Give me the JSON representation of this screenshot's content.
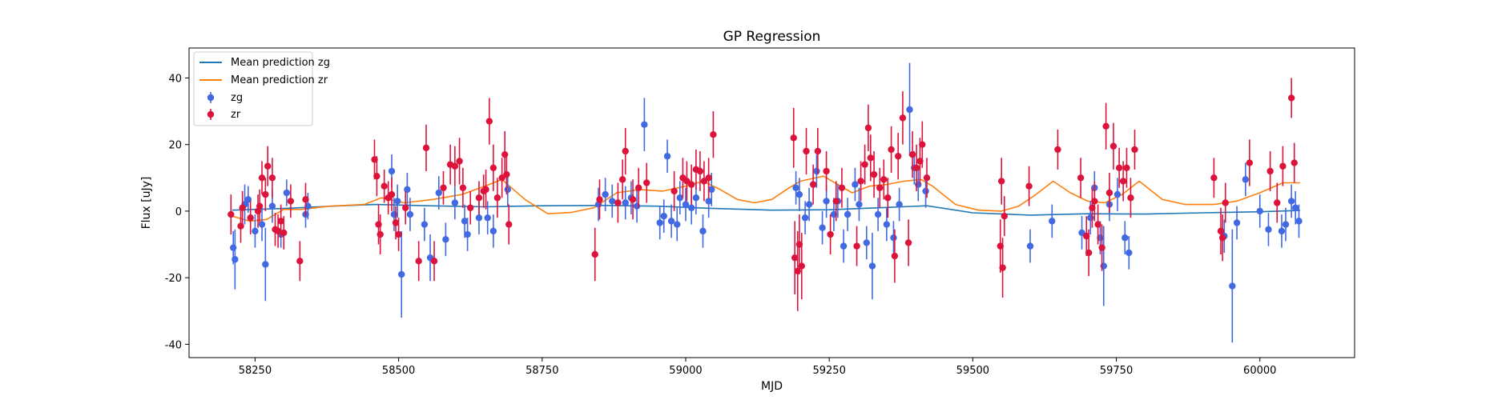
{
  "chart_data": {
    "type": "scatter",
    "title": "GP Regression",
    "xlabel": "MJD",
    "ylabel": "Flux [uJy]",
    "xlim": [
      58135,
      60165
    ],
    "ylim": [
      -44,
      49
    ],
    "xticks": [
      58250,
      58500,
      58750,
      59000,
      59250,
      59500,
      59750,
      60000
    ],
    "yticks": [
      -40,
      -20,
      0,
      20,
      40
    ],
    "legend_position": "upper-left",
    "colors": {
      "mean_zg": "#1f77b4",
      "mean_zr": "#ff7f0e",
      "zg": "#4169e1",
      "zr": "#dc143c"
    },
    "lines": [
      {
        "name": "Mean prediction zg",
        "x": [
          58210,
          58300,
          58400,
          58460,
          58550,
          58650,
          58750,
          58850,
          58950,
          59050,
          59150,
          59250,
          59350,
          59420,
          59500,
          59600,
          59700,
          59800,
          59900,
          60000,
          60070
        ],
        "y": [
          0.3,
          0.8,
          1.6,
          2.0,
          1.6,
          1.3,
          1.6,
          1.7,
          1.5,
          0.8,
          0.3,
          0.4,
          1.1,
          1.6,
          -0.5,
          -1.2,
          -0.8,
          -0.9,
          -0.5,
          -0.2,
          0.2
        ]
      },
      {
        "name": "Mean prediction zr",
        "x": [
          58210,
          58240,
          58270,
          58300,
          58330,
          58380,
          58440,
          58470,
          58510,
          58560,
          58610,
          58650,
          58680,
          58720,
          58760,
          58800,
          58840,
          58880,
          58920,
          58960,
          59000,
          59030,
          59060,
          59090,
          59120,
          59150,
          59180,
          59200,
          59240,
          59270,
          59290,
          59320,
          59350,
          59380,
          59410,
          59430,
          59470,
          59510,
          59550,
          59580,
          59610,
          59640,
          59670,
          59700,
          59730,
          59760,
          59790,
          59830,
          59870,
          59920,
          59960,
          60000,
          60040,
          60070
        ],
        "y": [
          -1.5,
          -3.0,
          -2.5,
          0.5,
          0.5,
          1.5,
          2.0,
          4.0,
          2.5,
          3.5,
          5.0,
          7.5,
          9.5,
          3.5,
          -0.8,
          -0.4,
          1.0,
          5.5,
          6.5,
          6.0,
          7.5,
          9.0,
          6.5,
          3.5,
          2.5,
          3.5,
          7.0,
          9.0,
          10.5,
          7.5,
          5.5,
          7.5,
          8.0,
          9.0,
          9.5,
          7.5,
          2.0,
          0.3,
          0.0,
          1.5,
          5.0,
          9.0,
          5.5,
          3.0,
          2.5,
          5.0,
          9.0,
          3.5,
          2.0,
          2.0,
          3.0,
          5.5,
          8.5,
          8.5
        ]
      }
    ],
    "scatter_series": [
      {
        "name": "zg",
        "points": [
          [
            58212,
            -11,
            5
          ],
          [
            58215,
            -14.5,
            9
          ],
          [
            58232,
            2,
            6
          ],
          [
            58238,
            3.5,
            4
          ],
          [
            58250,
            -6,
            5
          ],
          [
            58262,
            -4,
            5
          ],
          [
            58268,
            -16,
            11
          ],
          [
            58280,
            1.5,
            5
          ],
          [
            58295,
            -7,
            4
          ],
          [
            58305,
            5.5,
            4
          ],
          [
            58338,
            -1,
            4
          ],
          [
            58342,
            1.5,
            4
          ],
          [
            58488,
            12,
            5
          ],
          [
            58492,
            -1,
            5
          ],
          [
            58498,
            3,
            5
          ],
          [
            58505,
            -19,
            13
          ],
          [
            58515,
            6.5,
            5
          ],
          [
            58520,
            -1,
            5
          ],
          [
            58545,
            -4,
            5
          ],
          [
            58555,
            -14,
            7
          ],
          [
            58570,
            5.5,
            5
          ],
          [
            58582,
            -8.5,
            5
          ],
          [
            58598,
            2.5,
            5
          ],
          [
            58615,
            -3,
            5
          ],
          [
            58620,
            -7,
            5
          ],
          [
            58640,
            -2,
            5
          ],
          [
            58655,
            -2,
            5
          ],
          [
            58665,
            -6,
            5
          ],
          [
            58690,
            6.5,
            5
          ],
          [
            58848,
            2,
            5
          ],
          [
            58860,
            5,
            5
          ],
          [
            58872,
            3,
            5
          ],
          [
            58895,
            2.5,
            5
          ],
          [
            58905,
            4,
            5
          ],
          [
            58915,
            1.5,
            5
          ],
          [
            58928,
            26,
            8
          ],
          [
            58955,
            -3.5,
            5
          ],
          [
            58962,
            -1.5,
            5
          ],
          [
            58968,
            16.5,
            5
          ],
          [
            58975,
            -3,
            5
          ],
          [
            58985,
            -4,
            5
          ],
          [
            58990,
            4,
            5
          ],
          [
            59000,
            2,
            5
          ],
          [
            59010,
            1,
            5
          ],
          [
            59018,
            4,
            5
          ],
          [
            59030,
            -6,
            5
          ],
          [
            59040,
            3,
            5
          ],
          [
            59045,
            6.5,
            5
          ],
          [
            59192,
            7,
            5
          ],
          [
            59198,
            5,
            5
          ],
          [
            59208,
            -2,
            5
          ],
          [
            59215,
            2,
            5
          ],
          [
            59228,
            12,
            5
          ],
          [
            59238,
            -5,
            5
          ],
          [
            59245,
            3,
            5
          ],
          [
            59258,
            -1,
            5
          ],
          [
            59265,
            3,
            5
          ],
          [
            59275,
            -10.5,
            5
          ],
          [
            59282,
            -1,
            5
          ],
          [
            59295,
            8,
            5
          ],
          [
            59302,
            2,
            5
          ],
          [
            59315,
            -9.5,
            5
          ],
          [
            59325,
            -16.5,
            10
          ],
          [
            59335,
            -1,
            5
          ],
          [
            59350,
            -4,
            5
          ],
          [
            59362,
            -8,
            5
          ],
          [
            59372,
            2,
            5
          ],
          [
            59390,
            30.5,
            14
          ],
          [
            59398,
            13,
            5
          ],
          [
            59405,
            8,
            5
          ],
          [
            59418,
            6,
            5
          ],
          [
            59600,
            -10.5,
            5
          ],
          [
            59638,
            -3,
            5
          ],
          [
            59690,
            -6.5,
            5
          ],
          [
            59705,
            -2,
            5
          ],
          [
            59712,
            7,
            5
          ],
          [
            59722,
            -8,
            5
          ],
          [
            59728,
            -16.5,
            12
          ],
          [
            59738,
            2,
            5
          ],
          [
            59752,
            5,
            5
          ],
          [
            59765,
            -8,
            5
          ],
          [
            59772,
            -12.5,
            5
          ],
          [
            59938,
            -7.5,
            5
          ],
          [
            59952,
            -22.5,
            17
          ],
          [
            59960,
            -3.5,
            5
          ],
          [
            59975,
            9.5,
            5
          ],
          [
            60000,
            0,
            5
          ],
          [
            60015,
            -5.5,
            5
          ],
          [
            60038,
            -6,
            5
          ],
          [
            60045,
            -4,
            5
          ],
          [
            60055,
            3,
            5
          ],
          [
            60062,
            1,
            5
          ],
          [
            60068,
            -3,
            5
          ]
        ]
      },
      {
        "name": "zr",
        "points": [
          [
            58208,
            -1,
            6
          ],
          [
            58225,
            -4.5,
            5
          ],
          [
            58228,
            1,
            5
          ],
          [
            58242,
            -2,
            5
          ],
          [
            58255,
            0,
            5
          ],
          [
            58258,
            1.5,
            5
          ],
          [
            58262,
            10,
            5
          ],
          [
            58268,
            5,
            5
          ],
          [
            58272,
            13.5,
            6
          ],
          [
            58280,
            10,
            6
          ],
          [
            58285,
            -5.5,
            5
          ],
          [
            58290,
            -6,
            5
          ],
          [
            58295,
            -3,
            5
          ],
          [
            58300,
            -6.5,
            5
          ],
          [
            58312,
            3,
            5
          ],
          [
            58328,
            -15,
            6
          ],
          [
            58338,
            3.5,
            5
          ],
          [
            58458,
            15.5,
            6
          ],
          [
            58462,
            10.5,
            6
          ],
          [
            58465,
            -4,
            6
          ],
          [
            58468,
            -7,
            6
          ],
          [
            58475,
            7.5,
            5
          ],
          [
            58482,
            4,
            5
          ],
          [
            58488,
            5,
            5
          ],
          [
            58495,
            -3.5,
            5
          ],
          [
            58500,
            -7,
            5
          ],
          [
            58512,
            1,
            5
          ],
          [
            58535,
            -15,
            6
          ],
          [
            58548,
            19,
            7
          ],
          [
            58562,
            -15,
            6
          ],
          [
            58578,
            7,
            5
          ],
          [
            58590,
            14,
            6
          ],
          [
            58598,
            13.5,
            6
          ],
          [
            58606,
            15,
            7
          ],
          [
            58612,
            7,
            6
          ],
          [
            58625,
            1,
            5
          ],
          [
            58640,
            4,
            5
          ],
          [
            58648,
            6,
            5
          ],
          [
            58652,
            6.5,
            6
          ],
          [
            58658,
            27,
            7
          ],
          [
            58665,
            13,
            7
          ],
          [
            58672,
            4,
            6
          ],
          [
            58680,
            10,
            6
          ],
          [
            58685,
            17,
            7
          ],
          [
            58688,
            11,
            6
          ],
          [
            58692,
            -4,
            6
          ],
          [
            58842,
            -13,
            8
          ],
          [
            58850,
            3.5,
            6
          ],
          [
            58882,
            2.5,
            6
          ],
          [
            58890,
            9.5,
            6
          ],
          [
            58895,
            18,
            7
          ],
          [
            58908,
            3.5,
            6
          ],
          [
            58918,
            7,
            6
          ],
          [
            58932,
            8.5,
            6
          ],
          [
            58980,
            6,
            6
          ],
          [
            58995,
            10,
            6
          ],
          [
            59002,
            9,
            6
          ],
          [
            59010,
            8,
            6
          ],
          [
            59018,
            12.5,
            6
          ],
          [
            59025,
            12,
            6
          ],
          [
            59032,
            9,
            6
          ],
          [
            59040,
            10,
            6
          ],
          [
            59048,
            23,
            7
          ],
          [
            59188,
            22,
            9
          ],
          [
            59190,
            -14,
            11
          ],
          [
            59195,
            -18,
            12
          ],
          [
            59198,
            -10,
            9
          ],
          [
            59202,
            -16.5,
            10
          ],
          [
            59210,
            18,
            7
          ],
          [
            59222,
            8,
            6
          ],
          [
            59230,
            18,
            7
          ],
          [
            59245,
            12,
            6
          ],
          [
            59252,
            -7,
            6
          ],
          [
            59262,
            3,
            6
          ],
          [
            59272,
            7,
            6
          ],
          [
            59298,
            -10.5,
            6
          ],
          [
            59305,
            9,
            6
          ],
          [
            59312,
            14,
            6
          ],
          [
            59318,
            25,
            7
          ],
          [
            59322,
            16,
            7
          ],
          [
            59328,
            11,
            7
          ],
          [
            59338,
            7,
            6
          ],
          [
            59345,
            9.5,
            6
          ],
          [
            59352,
            4,
            6
          ],
          [
            59358,
            18.5,
            7
          ],
          [
            59364,
            -13.5,
            8
          ],
          [
            59370,
            16.5,
            7
          ],
          [
            59378,
            28,
            8
          ],
          [
            59388,
            -9.5,
            7
          ],
          [
            59395,
            17,
            7
          ],
          [
            59402,
            13,
            7
          ],
          [
            59408,
            15,
            7
          ],
          [
            59412,
            20,
            7
          ],
          [
            59420,
            10,
            6
          ],
          [
            59548,
            -10.5,
            8
          ],
          [
            59550,
            9,
            7
          ],
          [
            59552,
            -17,
            9
          ],
          [
            59555,
            -1.5,
            6
          ],
          [
            59598,
            7.5,
            6
          ],
          [
            59648,
            18.5,
            6
          ],
          [
            59688,
            10,
            6
          ],
          [
            59698,
            -7.5,
            6
          ],
          [
            59702,
            -12.5,
            7
          ],
          [
            59708,
            1,
            6
          ],
          [
            59712,
            3,
            6
          ],
          [
            59718,
            -4,
            6
          ],
          [
            59725,
            -11,
            7
          ],
          [
            59732,
            25.5,
            7
          ],
          [
            59738,
            5.5,
            6
          ],
          [
            59745,
            19.5,
            7
          ],
          [
            59755,
            13,
            6
          ],
          [
            59762,
            9,
            6
          ],
          [
            59768,
            13,
            6
          ],
          [
            59775,
            4,
            6
          ],
          [
            59782,
            18.5,
            6
          ],
          [
            59920,
            10,
            6
          ],
          [
            59932,
            -6,
            7
          ],
          [
            59935,
            -8,
            7
          ],
          [
            59940,
            2.5,
            6
          ],
          [
            59982,
            14.5,
            7
          ],
          [
            60018,
            12,
            6
          ],
          [
            60030,
            2.5,
            6
          ],
          [
            60040,
            13.5,
            6
          ],
          [
            60055,
            34,
            6
          ],
          [
            60060,
            14.5,
            6
          ]
        ]
      }
    ]
  }
}
